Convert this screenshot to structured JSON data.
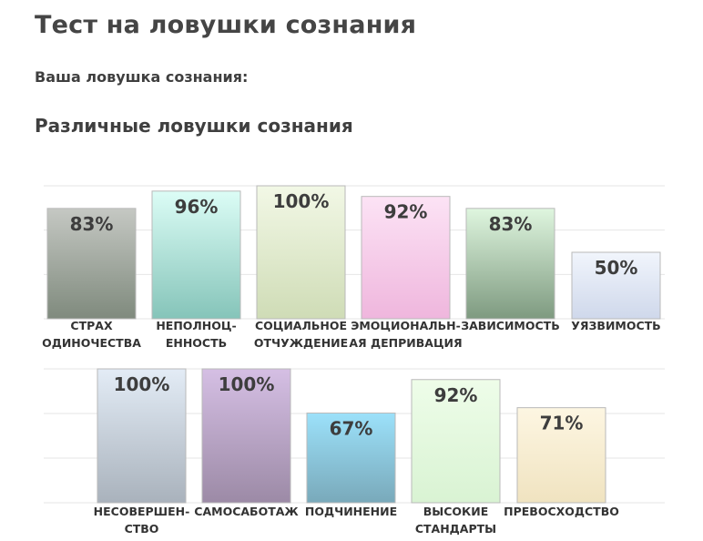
{
  "page": {
    "title": "Тест на ловушки сознания",
    "result_label": "Ваша ловушка сознания:",
    "section_title": "Различные ловушки сознания"
  },
  "chart_data": [
    {
      "type": "bar",
      "ylim": [
        0,
        100
      ],
      "grid": true,
      "categories": [
        [
          "СТРАХ",
          "ОДИНОЧЕСТВА"
        ],
        [
          "НЕПОЛНОЦ-",
          "ЕННОСТЬ"
        ],
        [
          "СОЦИАЛЬНОЕ",
          "ОТЧУЖДЕНИЕ"
        ],
        [
          "ЭМОЦИОНАЛЬН-",
          "АЯ ДЕПРИВАЦИЯ"
        ],
        [
          "ЗАВИСИМОСТЬ"
        ],
        [
          "УЯЗВИМОСТЬ"
        ]
      ],
      "values": [
        83,
        96,
        100,
        92,
        83,
        50
      ],
      "value_labels": [
        "83%",
        "96%",
        "100%",
        "92%",
        "83%",
        "50%"
      ],
      "colors": [
        [
          "#c5c8c3",
          "#7f8a7d"
        ],
        [
          "#dcfdf6",
          "#85c4b9"
        ],
        [
          "#f2f8e6",
          "#cfdcb6"
        ],
        [
          "#fce3f5",
          "#efb6dd"
        ],
        [
          "#dff6df",
          "#7e9a80"
        ],
        [
          "#f1f5fc",
          "#cfd8eb"
        ]
      ]
    },
    {
      "type": "bar",
      "ylim": [
        0,
        100
      ],
      "grid": true,
      "categories": [
        [
          "НЕСОВЕРШЕН-",
          "СТВО"
        ],
        [
          "САМОСАБОТАЖ"
        ],
        [
          "ПОДЧИНЕНИЕ"
        ],
        [
          "ВЫСОКИЕ",
          "СТАНДАРТЫ"
        ],
        [
          "ПРЕВОСХОДСТВО"
        ]
      ],
      "values": [
        100,
        100,
        67,
        92,
        71
      ],
      "value_labels": [
        "100%",
        "100%",
        "67%",
        "92%",
        "71%"
      ],
      "colors": [
        [
          "#e3ecf6",
          "#a9b2bc"
        ],
        [
          "#d5bfe4",
          "#9c8aa6"
        ],
        [
          "#9ce1fa",
          "#79a9ba"
        ],
        [
          "#eefde9",
          "#d9f3d3"
        ],
        [
          "#fdf6e2",
          "#f0e3c0"
        ]
      ]
    }
  ]
}
